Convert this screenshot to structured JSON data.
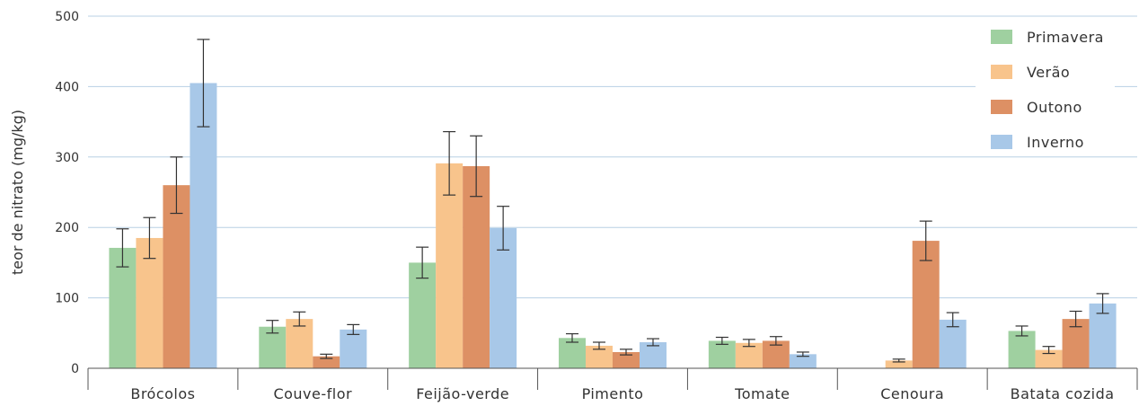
{
  "chart_data": {
    "type": "bar",
    "title": "",
    "xlabel": "",
    "ylabel": "teor de nitrato (mg/kg)",
    "ylim": [
      0,
      500
    ],
    "yticks": [
      0,
      100,
      200,
      300,
      400,
      500
    ],
    "grid": true,
    "legend_position": "top-right",
    "categories": [
      "Brócolos",
      "Couve-flor",
      "Feijão-verde",
      "Pimento",
      "Tomate",
      "Cenoura",
      "Batata cozida"
    ],
    "series": [
      {
        "name": "Primavera",
        "color": "#9fd0a0",
        "values": [
          171,
          59,
          150,
          43,
          39,
          null,
          53
        ],
        "errors": [
          27,
          9,
          22,
          6,
          5,
          null,
          7
        ]
      },
      {
        "name": "Verão",
        "color": "#f8c48c",
        "values": [
          185,
          70,
          291,
          32,
          36,
          11,
          26
        ],
        "errors": [
          29,
          10,
          45,
          5,
          5,
          2,
          5
        ]
      },
      {
        "name": "Outono",
        "color": "#dd9064",
        "values": [
          260,
          17,
          287,
          23,
          39,
          181,
          70
        ],
        "errors": [
          40,
          3,
          43,
          4,
          6,
          28,
          11
        ]
      },
      {
        "name": "Inverno",
        "color": "#a8c8e8",
        "values": [
          405,
          55,
          199,
          37,
          20,
          69,
          92
        ],
        "errors": [
          62,
          7,
          31,
          5,
          3,
          10,
          14
        ]
      }
    ]
  }
}
